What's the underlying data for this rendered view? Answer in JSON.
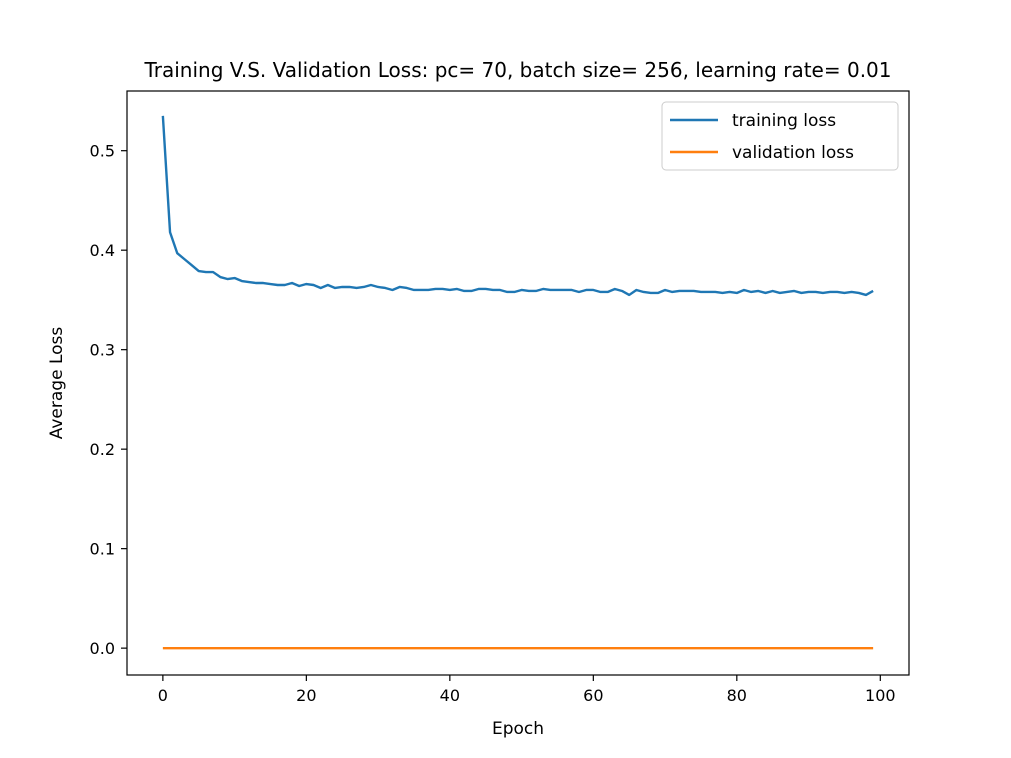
{
  "chart_data": {
    "type": "line",
    "title": "Training V.S. Validation Loss: pc= 70, batch size= 256, learning rate= 0.01",
    "xlabel": "Epoch",
    "ylabel": "Average Loss",
    "xlim": [
      -5,
      104
    ],
    "ylim": [
      -0.027,
      0.56
    ],
    "xticks": [
      0,
      20,
      40,
      60,
      80,
      100
    ],
    "yticks": [
      0.0,
      0.1,
      0.2,
      0.3,
      0.4,
      0.5
    ],
    "xtick_labels": [
      "0",
      "20",
      "40",
      "60",
      "80",
      "100"
    ],
    "ytick_labels": [
      "0.0",
      "0.1",
      "0.2",
      "0.3",
      "0.4",
      "0.5"
    ],
    "grid": false,
    "legend_position": "top-right",
    "series": [
      {
        "name": "training loss",
        "color": "#1f77b4",
        "x": [
          0,
          1,
          2,
          3,
          4,
          5,
          6,
          7,
          8,
          9,
          10,
          11,
          12,
          13,
          14,
          15,
          16,
          17,
          18,
          19,
          20,
          21,
          22,
          23,
          24,
          25,
          26,
          27,
          28,
          29,
          30,
          31,
          32,
          33,
          34,
          35,
          36,
          37,
          38,
          39,
          40,
          41,
          42,
          43,
          44,
          45,
          46,
          47,
          48,
          49,
          50,
          51,
          52,
          53,
          54,
          55,
          56,
          57,
          58,
          59,
          60,
          61,
          62,
          63,
          64,
          65,
          66,
          67,
          68,
          69,
          70,
          71,
          72,
          73,
          74,
          75,
          76,
          77,
          78,
          79,
          80,
          81,
          82,
          83,
          84,
          85,
          86,
          87,
          88,
          89,
          90,
          91,
          92,
          93,
          94,
          95,
          96,
          97,
          98,
          99
        ],
        "y": [
          0.535,
          0.418,
          0.397,
          0.391,
          0.385,
          0.379,
          0.378,
          0.378,
          0.373,
          0.371,
          0.372,
          0.369,
          0.368,
          0.367,
          0.367,
          0.366,
          0.365,
          0.365,
          0.367,
          0.364,
          0.366,
          0.365,
          0.362,
          0.365,
          0.362,
          0.363,
          0.363,
          0.362,
          0.363,
          0.365,
          0.363,
          0.362,
          0.36,
          0.363,
          0.362,
          0.36,
          0.36,
          0.36,
          0.361,
          0.361,
          0.36,
          0.361,
          0.359,
          0.359,
          0.361,
          0.361,
          0.36,
          0.36,
          0.358,
          0.358,
          0.36,
          0.359,
          0.359,
          0.361,
          0.36,
          0.36,
          0.36,
          0.36,
          0.358,
          0.36,
          0.36,
          0.358,
          0.358,
          0.361,
          0.359,
          0.355,
          0.36,
          0.358,
          0.357,
          0.357,
          0.36,
          0.358,
          0.359,
          0.359,
          0.359,
          0.358,
          0.358,
          0.358,
          0.357,
          0.358,
          0.357,
          0.36,
          0.358,
          0.359,
          0.357,
          0.359,
          0.357,
          0.358,
          0.359,
          0.357,
          0.358,
          0.358,
          0.357,
          0.358,
          0.358,
          0.357,
          0.358,
          0.357,
          0.355,
          0.359
        ]
      },
      {
        "name": "validation loss",
        "color": "#ff7f0e",
        "x": [
          0,
          99
        ],
        "y": [
          0.0,
          0.0
        ]
      }
    ]
  }
}
